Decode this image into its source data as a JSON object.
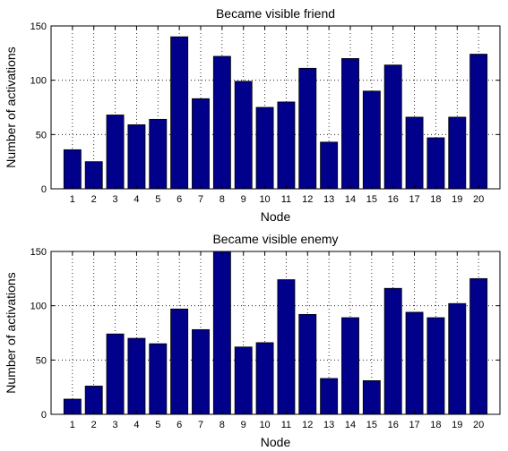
{
  "chart_data": [
    {
      "type": "bar",
      "title": "Became visible friend",
      "xlabel": "Node",
      "ylabel": "Number of activations",
      "categories": [
        "1",
        "2",
        "3",
        "4",
        "5",
        "6",
        "7",
        "8",
        "9",
        "10",
        "11",
        "12",
        "13",
        "14",
        "15",
        "16",
        "17",
        "18",
        "19",
        "20"
      ],
      "values": [
        36,
        25,
        68,
        59,
        64,
        140,
        83,
        122,
        99,
        75,
        80,
        111,
        43,
        120,
        90,
        114,
        66,
        47,
        66,
        124
      ],
      "ylim": [
        0,
        150
      ],
      "yticks": [
        0,
        50,
        100,
        150
      ],
      "grid": true,
      "bar_color": "#00008B"
    },
    {
      "type": "bar",
      "title": "Became visible enemy",
      "xlabel": "Node",
      "ylabel": "Number of activations",
      "categories": [
        "1",
        "2",
        "3",
        "4",
        "5",
        "6",
        "7",
        "8",
        "9",
        "10",
        "11",
        "12",
        "13",
        "14",
        "15",
        "16",
        "17",
        "18",
        "19",
        "20"
      ],
      "values": [
        14,
        26,
        74,
        70,
        65,
        97,
        78,
        150,
        62,
        66,
        124,
        92,
        33,
        89,
        31,
        116,
        94,
        89,
        102,
        125
      ],
      "ylim": [
        0,
        150
      ],
      "yticks": [
        0,
        50,
        100,
        150
      ],
      "grid": true,
      "bar_color": "#00008B"
    }
  ]
}
